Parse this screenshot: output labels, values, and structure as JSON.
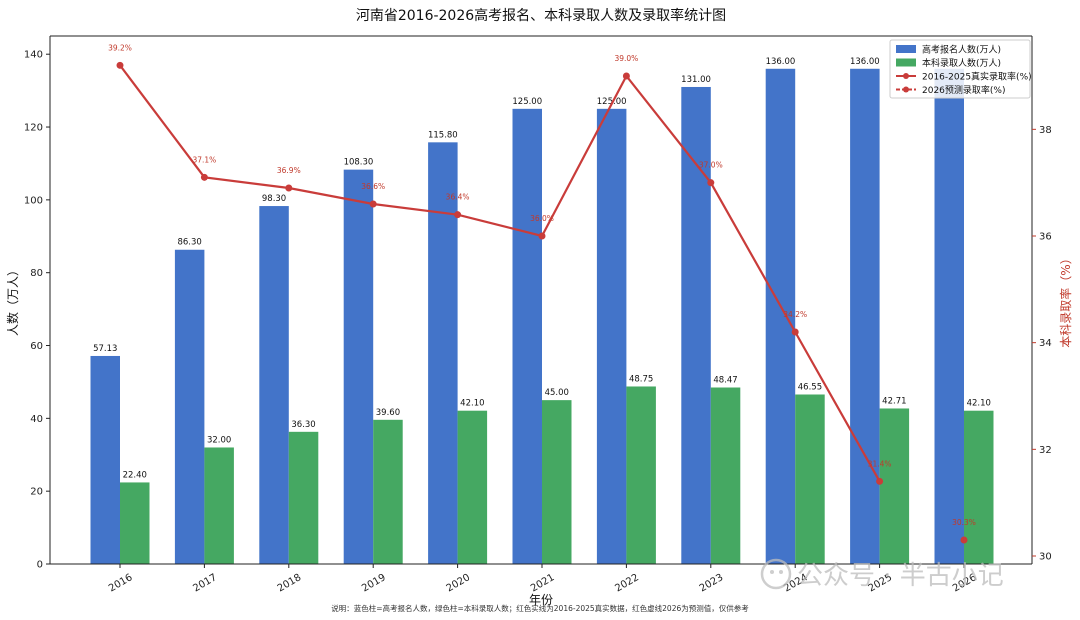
{
  "chart_data": {
    "type": "bar",
    "title": "河南省2016-2026高考报名、本科录取人数及录取率统计图",
    "xlabel": "年份",
    "ylabel": "人数（万人）",
    "ylabel_right": "本科录取率（%）",
    "ylim": [
      0,
      145
    ],
    "ylim_right": [
      29.85,
      39.75
    ],
    "yticks": [
      0,
      20,
      40,
      60,
      80,
      100,
      120,
      140
    ],
    "yticks_right": [
      30,
      32,
      34,
      36,
      38
    ],
    "categories": [
      "2016",
      "2017",
      "2018",
      "2019",
      "2020",
      "2021",
      "2022",
      "2023",
      "2024",
      "2025",
      "2026"
    ],
    "series": [
      {
        "name": "高考报名人数(万人)",
        "kind": "bar",
        "color": "#4374c9",
        "values": [
          57.13,
          86.3,
          98.3,
          108.3,
          115.8,
          125.0,
          125.0,
          131.0,
          136.0,
          136.0,
          136.0
        ],
        "labels": [
          "57.13",
          "86.30",
          "98.30",
          "108.30",
          "115.80",
          "125.00",
          "125.00",
          "131.00",
          "136.00",
          "136.00",
          ""
        ]
      },
      {
        "name": "本科录取人数(万人)",
        "kind": "bar",
        "color": "#45a862",
        "values": [
          22.4,
          32.0,
          36.3,
          39.6,
          42.1,
          45.0,
          48.75,
          48.47,
          46.55,
          42.71,
          42.1
        ],
        "labels": [
          "22.40",
          "32.00",
          "36.30",
          "39.60",
          "42.10",
          "45.00",
          "48.75",
          "48.47",
          "46.55",
          "42.71",
          "42.10"
        ]
      },
      {
        "name": "2016-2025真实录取率(%)",
        "kind": "line",
        "axis": "right",
        "color": "#c93c3a",
        "x": [
          "2016",
          "2017",
          "2018",
          "2019",
          "2020",
          "2021",
          "2022",
          "2023",
          "2024",
          "2025"
        ],
        "values": [
          39.2,
          37.1,
          36.9,
          36.6,
          36.4,
          36.0,
          39.0,
          37.0,
          34.2,
          31.4
        ],
        "labels": [
          "39.2%",
          "37.1%",
          "36.9%",
          "36.6%",
          "36.4%",
          "36.0%",
          "39.0%",
          "37.0%",
          "34.2%",
          "31.4%"
        ]
      },
      {
        "name": "2026预测录取率(%)",
        "kind": "line",
        "axis": "right",
        "color": "#c93c3a",
        "dashed": true,
        "x": [
          "2026"
        ],
        "values": [
          30.3
        ],
        "labels": [
          "30.3%"
        ]
      }
    ],
    "legend": "top-right",
    "grid": false,
    "caption": "说明：蓝色柱=高考报名人数，绿色柱=本科录取人数；红色实线为2016-2025真实数据，红色虚线2026为预测值，仅供参考",
    "watermark": "公众号 · 半古小记"
  }
}
